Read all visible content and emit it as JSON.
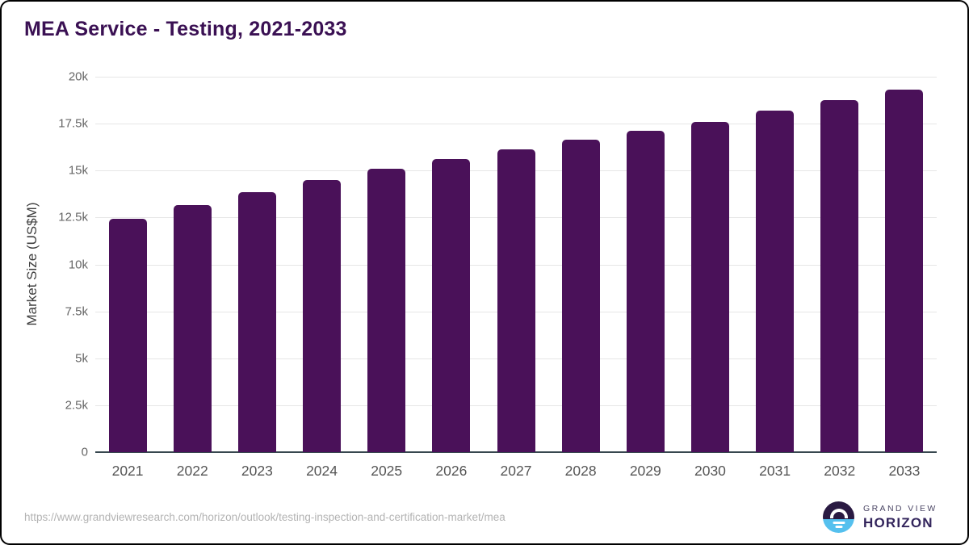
{
  "title": "MEA Service - Testing, 2021-2033",
  "footer": {
    "source_url": "https://www.grandviewresearch.com/horizon/outlook/testing-inspection-and-certification-market/mea"
  },
  "logo": {
    "line1": "GRAND VIEW",
    "line2": "HORIZON"
  },
  "chart_data": {
    "type": "bar",
    "title": "MEA Service - Testing, 2021-2033",
    "categories": [
      "2021",
      "2022",
      "2023",
      "2024",
      "2025",
      "2026",
      "2027",
      "2028",
      "2029",
      "2030",
      "2031",
      "2032",
      "2033"
    ],
    "values": [
      12450,
      13150,
      13850,
      14480,
      15080,
      15620,
      16150,
      16630,
      17110,
      17600,
      18190,
      18770,
      19300
    ],
    "xlabel": "",
    "ylabel": "Market Size (US$M)",
    "ylim": [
      0,
      20000
    ],
    "yticks": [
      {
        "value": 0,
        "label": "0"
      },
      {
        "value": 2500,
        "label": "2.5k"
      },
      {
        "value": 5000,
        "label": "5k"
      },
      {
        "value": 7500,
        "label": "7.5k"
      },
      {
        "value": 10000,
        "label": "10k"
      },
      {
        "value": 12500,
        "label": "12.5k"
      },
      {
        "value": 15000,
        "label": "15k"
      },
      {
        "value": 17500,
        "label": "17.5k"
      },
      {
        "value": 20000,
        "label": "20k"
      }
    ],
    "grid": true,
    "legend": false,
    "bar_color": "#4a1159"
  },
  "colors": {
    "title": "#3a1053",
    "bar": "#4a1159",
    "gridline": "#e6e6e6",
    "axis_line": "#37474f",
    "tick_label": "#666666",
    "x_label": "#555555",
    "footer": "#b3b3b3",
    "logo_dark": "#2a1a42",
    "logo_blue": "#55c0ee"
  }
}
